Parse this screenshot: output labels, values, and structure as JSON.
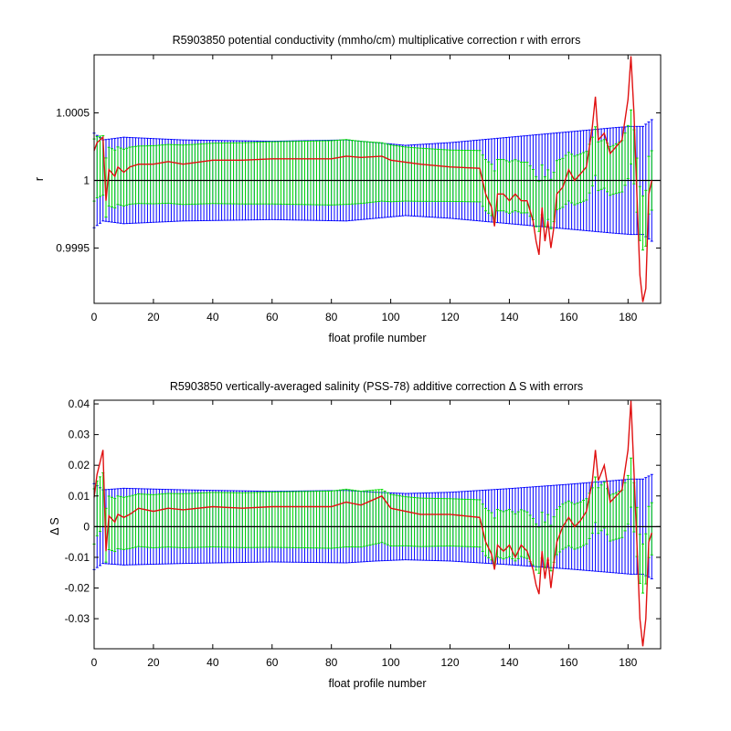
{
  "figure": {
    "colors": {
      "upper_error": "#0000ff",
      "lower_error": "#00dd00",
      "correction": "#e01010",
      "zero_line": "#000000",
      "background": "#ffffff"
    }
  },
  "chart_data": [
    {
      "type": "line",
      "title": "R5903850 potential conductivity (mmho/cm) multiplicative correction r with errors",
      "xlabel": "float profile number",
      "ylabel": "r",
      "xlim": [
        0,
        191
      ],
      "ylim": [
        0.99909,
        1.00093
      ],
      "xticks": [
        0,
        20,
        40,
        60,
        80,
        100,
        120,
        140,
        160,
        180
      ],
      "xtick_labels": [
        "0",
        "20",
        "40",
        "60",
        "80",
        "100",
        "120",
        "140",
        "160",
        "180"
      ],
      "yticks": [
        0.9995,
        1.0,
        1.0005
      ],
      "ytick_labels": [
        "0.9995",
        "1",
        "1.0005"
      ],
      "reference_line": 1.0,
      "grid": false,
      "series": [
        {
          "role": "correction",
          "color": "#e01010",
          "x": [
            0,
            1,
            2,
            3,
            4,
            5,
            7,
            8,
            10,
            12,
            15,
            20,
            25,
            30,
            40,
            50,
            60,
            70,
            80,
            85,
            90,
            97,
            100,
            110,
            120,
            130,
            132,
            134,
            135,
            136,
            138,
            140,
            142,
            144,
            146,
            148,
            149,
            150,
            151,
            152,
            153,
            154,
            155,
            156,
            158,
            160,
            162,
            164,
            166,
            168,
            169,
            170,
            172,
            174,
            176,
            178,
            180,
            181,
            182,
            183,
            184,
            185,
            186,
            187,
            188
          ],
          "y": [
            1.00022,
            1.00028,
            1.0003,
            1.00032,
            0.99985,
            1.00008,
            1.00003,
            1.0001,
            1.00006,
            1.0001,
            1.00012,
            1.00012,
            1.00014,
            1.00012,
            1.00015,
            1.00015,
            1.00016,
            1.00016,
            1.00016,
            1.00018,
            1.00017,
            1.00018,
            1.00015,
            1.00012,
            1.0001,
            1.00009,
            0.9999,
            0.9998,
            0.99966,
            0.9999,
            0.9999,
            0.99985,
            0.9999,
            0.99985,
            0.99985,
            0.9997,
            0.99955,
            0.99945,
            0.9998,
            0.99955,
            0.9997,
            0.9995,
            0.99965,
            0.9999,
            0.99995,
            1.00008,
            1.0,
            1.00005,
            1.0001,
            1.0004,
            1.00062,
            1.0003,
            1.00035,
            1.0002,
            1.00025,
            1.0003,
            1.0006,
            1.00092,
            1.0005,
            0.9999,
            0.9993,
            0.9991,
            0.9992,
            0.9999,
            1.0
          ]
        },
        {
          "role": "upper-error-band",
          "color": "#0000ff",
          "x": [
            0,
            3,
            10,
            30,
            60,
            85,
            95,
            105,
            120,
            140,
            160,
            175,
            181,
            185,
            188
          ],
          "y": [
            1.00035,
            1.0003,
            1.00032,
            1.0003,
            1.00029,
            1.0003,
            1.00028,
            1.00026,
            1.00028,
            1.00032,
            1.00036,
            1.00039,
            1.0004,
            1.0004,
            1.00045
          ]
        },
        {
          "role": "lower-error-band",
          "color": "#00dd00",
          "x": [
            0,
            3,
            10,
            30,
            60,
            85,
            95,
            105,
            120,
            140,
            160,
            175,
            181,
            185,
            188
          ],
          "y": [
            1.00023,
            1.00022,
            1.00021,
            1.00022,
            1.00023,
            1.00024,
            1.00022,
            1.0002,
            1.00019,
            1.00019,
            1.00018,
            1.00018,
            1.0002,
            1.0002,
            1.00022
          ]
        }
      ]
    },
    {
      "type": "line",
      "title": "R5903850 vertically-averaged salinity (PSS-78) additive correction Δ S with errors",
      "xlabel": "float profile number",
      "ylabel": "Δ S",
      "xlim": [
        0,
        191
      ],
      "ylim": [
        -0.0398,
        0.0412
      ],
      "xticks": [
        0,
        20,
        40,
        60,
        80,
        100,
        120,
        140,
        160,
        180
      ],
      "xtick_labels": [
        "0",
        "20",
        "40",
        "60",
        "80",
        "100",
        "120",
        "140",
        "160",
        "180"
      ],
      "yticks": [
        -0.03,
        -0.02,
        -0.01,
        0,
        0.01,
        0.02,
        0.03,
        0.04
      ],
      "ytick_labels": [
        "-0.03",
        "-0.02",
        "-0.01",
        "0",
        "0.01",
        "0.02",
        "0.03",
        "0.04"
      ],
      "reference_line": 0,
      "grid": false,
      "series": [
        {
          "role": "correction",
          "color": "#e01010",
          "x": [
            0,
            1,
            2,
            3,
            4,
            5,
            7,
            8,
            10,
            12,
            15,
            20,
            25,
            30,
            40,
            50,
            60,
            70,
            80,
            85,
            90,
            97,
            100,
            110,
            120,
            130,
            132,
            134,
            135,
            136,
            138,
            140,
            142,
            144,
            146,
            148,
            149,
            150,
            151,
            152,
            153,
            154,
            155,
            156,
            158,
            160,
            162,
            164,
            166,
            168,
            169,
            170,
            172,
            174,
            176,
            178,
            180,
            181,
            182,
            183,
            184,
            185,
            186,
            187,
            188
          ],
          "y": [
            0.0095,
            0.017,
            0.021,
            0.025,
            -0.008,
            0.0035,
            0.0015,
            0.004,
            0.003,
            0.004,
            0.006,
            0.005,
            0.006,
            0.0055,
            0.0065,
            0.006,
            0.0065,
            0.0065,
            0.0065,
            0.008,
            0.007,
            0.01,
            0.006,
            0.004,
            0.004,
            0.003,
            -0.005,
            -0.009,
            -0.014,
            -0.006,
            -0.008,
            -0.006,
            -0.01,
            -0.006,
            -0.008,
            -0.014,
            -0.019,
            -0.022,
            -0.008,
            -0.017,
            -0.01,
            -0.02,
            -0.012,
            -0.005,
            0.0,
            0.003,
            0.0,
            0.002,
            0.005,
            0.015,
            0.025,
            0.015,
            0.02,
            0.008,
            0.01,
            0.012,
            0.025,
            0.041,
            0.018,
            -0.005,
            -0.03,
            -0.039,
            -0.03,
            -0.005,
            -0.002
          ]
        },
        {
          "role": "upper-error-band",
          "color": "#0000ff",
          "x": [
            0,
            3,
            10,
            30,
            60,
            85,
            95,
            105,
            120,
            140,
            160,
            175,
            181,
            185,
            188
          ],
          "y": [
            0.014,
            0.012,
            0.0125,
            0.012,
            0.0115,
            0.0118,
            0.0112,
            0.0108,
            0.0112,
            0.0124,
            0.0138,
            0.015,
            0.0155,
            0.0155,
            0.017
          ]
        },
        {
          "role": "lower-error-band",
          "color": "#00dd00",
          "x": [
            0,
            3,
            10,
            30,
            60,
            85,
            95,
            105,
            120,
            140,
            160,
            175,
            181,
            185,
            188
          ],
          "y": [
            0.009,
            0.0088,
            0.0085,
            0.0088,
            0.009,
            0.0094,
            0.0088,
            0.008,
            0.0077,
            0.0077,
            0.0073,
            0.0075,
            0.008,
            0.008,
            0.0085
          ]
        }
      ]
    }
  ]
}
